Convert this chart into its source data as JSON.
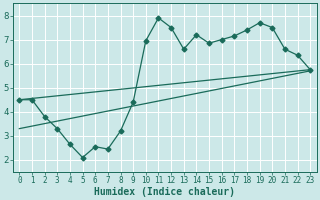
{
  "xlabel": "Humidex (Indice chaleur)",
  "background_color": "#cce8e8",
  "grid_color": "#ffffff",
  "line_color": "#1a6b5a",
  "xlim": [
    -0.5,
    23.5
  ],
  "ylim": [
    1.5,
    8.5
  ],
  "yticks": [
    2,
    3,
    4,
    5,
    6,
    7,
    8
  ],
  "xticks": [
    0,
    1,
    2,
    3,
    4,
    5,
    6,
    7,
    8,
    9,
    10,
    11,
    12,
    13,
    14,
    15,
    16,
    17,
    18,
    19,
    20,
    21,
    22,
    23
  ],
  "series1_x": [
    0,
    1,
    2,
    3,
    4,
    5,
    6,
    7,
    8,
    9,
    10,
    11,
    12,
    13,
    14,
    15,
    16,
    17,
    18,
    19,
    20,
    21,
    22,
    23
  ],
  "series1_y": [
    4.5,
    4.5,
    3.8,
    3.3,
    2.65,
    2.1,
    2.55,
    2.45,
    3.2,
    4.4,
    6.95,
    7.9,
    7.5,
    6.6,
    7.2,
    6.85,
    7.0,
    7.15,
    7.4,
    7.7,
    7.5,
    6.6,
    6.35,
    5.75
  ],
  "series2_x": [
    0,
    23
  ],
  "series2_y": [
    4.5,
    5.75
  ],
  "series3_x": [
    0,
    23
  ],
  "series3_y": [
    3.3,
    5.7
  ],
  "marker_size": 2.5,
  "linewidth": 0.9
}
